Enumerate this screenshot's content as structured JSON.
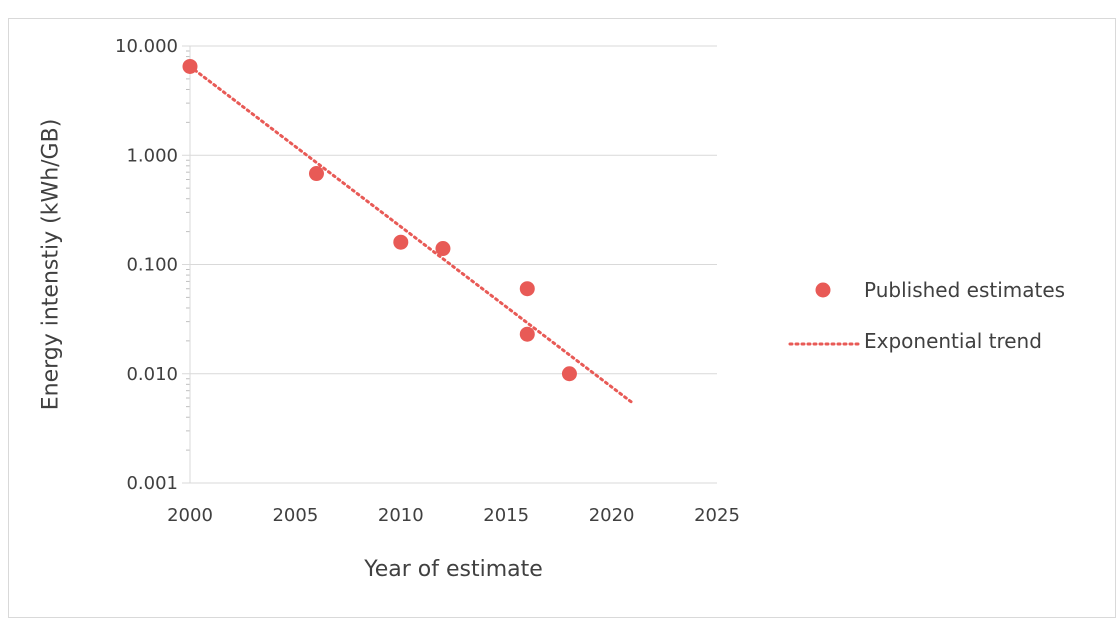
{
  "chart_data": {
    "type": "scatter",
    "xlabel": "Year of estimate",
    "ylabel": "Energy intenstiy (kWh/GB)",
    "xlim": [
      2000,
      2025
    ],
    "ylim": [
      0.001,
      10
    ],
    "y_scale": "log",
    "grid": true,
    "legend_position": "right",
    "x_ticks": [
      "2000",
      "2005",
      "2010",
      "2015",
      "2020",
      "2025"
    ],
    "x_tick_values": [
      2000,
      2005,
      2010,
      2015,
      2020,
      2025
    ],
    "y_ticks": [
      "0.001",
      "0.010",
      "0.100",
      "1.000",
      "10.000"
    ],
    "y_tick_values": [
      0.001,
      0.01,
      0.1,
      1,
      10
    ],
    "series": [
      {
        "name": "Published estimates",
        "kind": "scatter",
        "color": "#e85a56",
        "x": [
          2000,
          2006,
          2010,
          2012,
          2016,
          2016,
          2018
        ],
        "y": [
          6.5,
          0.68,
          0.16,
          0.14,
          0.06,
          0.023,
          0.01
        ]
      },
      {
        "name": "Exponential trend",
        "kind": "line",
        "style": "dotted",
        "color": "#e85a56",
        "x": [
          2000,
          2021
        ],
        "y": [
          6.5,
          0.0054
        ]
      }
    ]
  }
}
